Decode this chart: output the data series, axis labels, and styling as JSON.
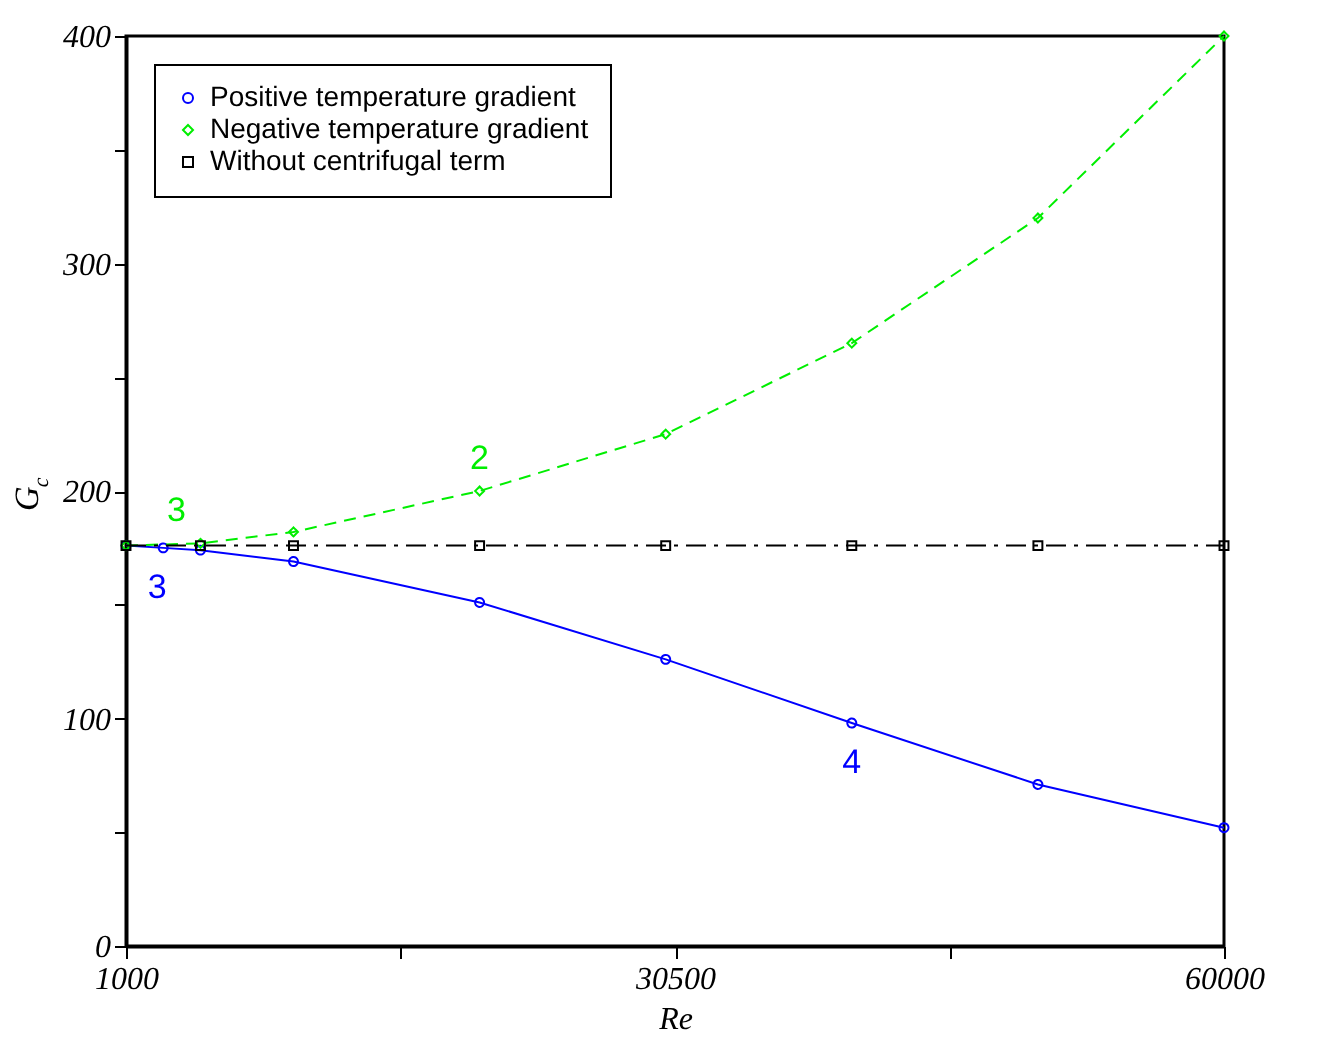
{
  "chart_data": {
    "type": "line",
    "xlabel": "Re",
    "ylabel": "G$_{c}$",
    "xlim": [
      1000,
      60000
    ],
    "xticks": [
      1000,
      {
        "value": 15750,
        "label": null
      },
      30500,
      {
        "value": 45250,
        "label": null
      },
      60000
    ],
    "ylim": [
      0,
      400
    ],
    "yticks": [
      0,
      {
        "value": 50,
        "label": null
      },
      100,
      {
        "value": 150,
        "label": null
      },
      200,
      {
        "value": 250,
        "label": null
      },
      300,
      {
        "value": 350,
        "label": null
      },
      400
    ],
    "grid": false,
    "legend": "top left",
    "series": [
      {
        "name": "Positive temperature gradient",
        "color": "#0000ff",
        "marker": "circle",
        "line_style": "solid",
        "x": [
          1000,
          3000,
          5000,
          10000,
          20000,
          30000,
          40000,
          50000,
          60000
        ],
        "values": [
          176,
          175,
          174,
          169,
          151,
          126,
          98,
          71,
          52
        ]
      },
      {
        "name": "Negative temperature gradient",
        "color": "#00ee00",
        "marker": "diamond",
        "line_style": "dashed",
        "x": [
          1000,
          5000,
          10000,
          20000,
          30000,
          40000,
          50000,
          60000
        ],
        "values": [
          176,
          177,
          182,
          200,
          225,
          265,
          320,
          400
        ]
      },
      {
        "name": "Without centrifugal term",
        "color": "#000000",
        "marker": "square",
        "line_style": "dashdot",
        "x": [
          1000,
          5000,
          10000,
          20000,
          30000,
          40000,
          50000,
          60000
        ],
        "values": [
          176,
          176,
          176,
          176,
          176,
          176,
          176,
          176
        ]
      }
    ],
    "annotations": [
      {
        "text": "3",
        "x": 5000,
        "y": 177
      },
      {
        "text": "3",
        "x": 3000,
        "y": 175
      },
      {
        "text": "2",
        "x": 20000,
        "y": 200
      },
      {
        "text": "4",
        "x": 40000,
        "y": 98
      }
    ]
  }
}
